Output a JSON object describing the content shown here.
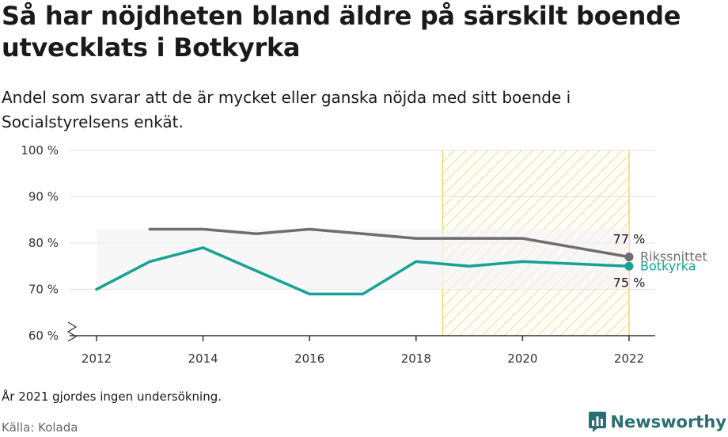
{
  "title": "Så har nöjdheten bland äldre på särskilt boende utvecklats i Botkyrka",
  "subtitle": "Andel som svarar att de är mycket eller ganska nöjda med sitt boende i Socialstyrelsens enkät.",
  "note": "År 2021 gjordes ingen undersökning.",
  "source": "Källa: Kolada",
  "brand": "Newsworthy",
  "colors": {
    "riksnittet": "#6e6d72",
    "botkyrka": "#16a393",
    "hatch": "#f7d36b",
    "band": "#f3f3f3",
    "grid": "#e2e2e2",
    "brand": "#2a6f73"
  },
  "chart_data": {
    "type": "line",
    "x_ticks": [
      "2012",
      "2014",
      "2016",
      "2018",
      "2020",
      "2022"
    ],
    "y_ticks": [
      "60 %",
      "70 %",
      "80 %",
      "90 %",
      "100 %"
    ],
    "xlim": [
      2012,
      2022
    ],
    "ylim": [
      60,
      100
    ],
    "highlight_range": [
      2018.5,
      2022
    ],
    "series": [
      {
        "name": "Rikssnittet",
        "x": [
          2013,
          2014,
          2015,
          2016,
          2017,
          2018,
          2019,
          2020,
          2022
        ],
        "values": [
          83,
          83,
          82,
          83,
          82,
          81,
          81,
          81,
          77
        ],
        "end_label": "77 %",
        "color_key": "riksnittet"
      },
      {
        "name": "Botkyrka",
        "x": [
          2012,
          2013,
          2014,
          2015,
          2016,
          2017,
          2018,
          2019,
          2020,
          2022
        ],
        "values": [
          70,
          76,
          79,
          74,
          69,
          69,
          76,
          75,
          76,
          75
        ],
        "end_label": "75 %",
        "color_key": "botkyrka"
      }
    ]
  }
}
